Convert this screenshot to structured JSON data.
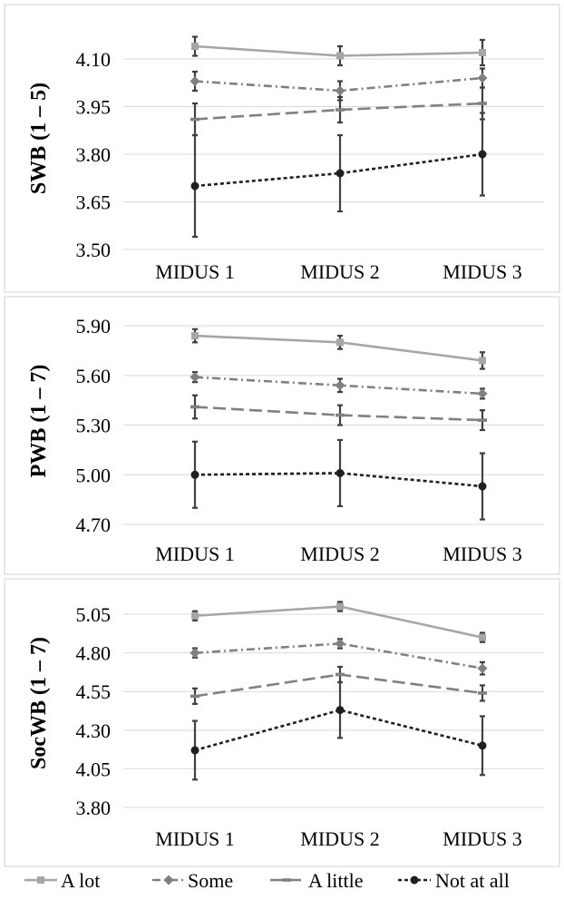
{
  "chart_data": [
    {
      "type": "line",
      "categories": [
        "MIDUS 1",
        "MIDUS 2",
        "MIDUS 3"
      ],
      "ylabel": "SWB (1 – 5)",
      "ylim": [
        3.5,
        4.2
      ],
      "yticks": [
        3.5,
        3.65,
        3.8,
        3.95,
        4.1
      ],
      "ytick_labels": [
        "3.50",
        "3.65",
        "3.80",
        "3.95",
        "4.10"
      ],
      "grid": true,
      "series": [
        {
          "name": "A lot",
          "values": [
            4.14,
            4.11,
            4.12
          ],
          "err": [
            0.03,
            0.03,
            0.04
          ]
        },
        {
          "name": "Some",
          "values": [
            4.03,
            4.0,
            4.04
          ],
          "err": [
            0.03,
            0.03,
            0.03
          ]
        },
        {
          "name": "A little",
          "values": [
            3.91,
            3.94,
            3.96
          ],
          "err": [
            0.05,
            0.04,
            0.05
          ]
        },
        {
          "name": "Not at all",
          "values": [
            3.7,
            3.74,
            3.8
          ],
          "err": [
            0.16,
            0.12,
            0.13
          ]
        }
      ]
    },
    {
      "type": "line",
      "categories": [
        "MIDUS 1",
        "MIDUS 2",
        "MIDUS 3"
      ],
      "ylabel": "PWB (1 – 7)",
      "ylim": [
        4.7,
        5.95
      ],
      "yticks": [
        4.7,
        5.0,
        5.3,
        5.6,
        5.9
      ],
      "ytick_labels": [
        "4.70",
        "5.00",
        "5.30",
        "5.60",
        "5.90"
      ],
      "grid": true,
      "series": [
        {
          "name": "A lot",
          "values": [
            5.84,
            5.8,
            5.69
          ],
          "err": [
            0.04,
            0.04,
            0.05
          ]
        },
        {
          "name": "Some",
          "values": [
            5.59,
            5.54,
            5.49
          ],
          "err": [
            0.03,
            0.04,
            0.03
          ]
        },
        {
          "name": "A little",
          "values": [
            5.41,
            5.36,
            5.33
          ],
          "err": [
            0.07,
            0.06,
            0.06
          ]
        },
        {
          "name": "Not at all",
          "values": [
            5.0,
            5.01,
            4.93
          ],
          "err": [
            0.2,
            0.2,
            0.2
          ]
        }
      ]
    },
    {
      "type": "line",
      "categories": [
        "MIDUS 1",
        "MIDUS 2",
        "MIDUS 3"
      ],
      "ylabel": "SocWB (1 – 7)",
      "ylim": [
        3.8,
        5.15
      ],
      "yticks": [
        3.8,
        4.05,
        4.3,
        4.55,
        4.8,
        5.05
      ],
      "ytick_labels": [
        "3.80",
        "4.05",
        "4.30",
        "4.55",
        "4.80",
        "5.05"
      ],
      "grid": true,
      "series": [
        {
          "name": "A lot",
          "values": [
            5.04,
            5.1,
            4.9
          ],
          "err": [
            0.03,
            0.03,
            0.03
          ]
        },
        {
          "name": "Some",
          "values": [
            4.8,
            4.86,
            4.7
          ],
          "err": [
            0.03,
            0.03,
            0.04
          ]
        },
        {
          "name": "A little",
          "values": [
            4.52,
            4.66,
            4.54
          ],
          "err": [
            0.05,
            0.05,
            0.05
          ]
        },
        {
          "name": "Not at all",
          "values": [
            4.17,
            4.43,
            4.2
          ],
          "err": [
            0.19,
            0.18,
            0.19
          ]
        }
      ]
    }
  ],
  "legend": {
    "placement": "bottom",
    "items": [
      {
        "label": "A lot",
        "color": "#a6a6a6",
        "marker": "square",
        "dash": "solid"
      },
      {
        "label": "Some",
        "color": "#808080",
        "marker": "diamond",
        "dash": "dash-dot"
      },
      {
        "label": "A little",
        "color": "#808080",
        "marker": "dash",
        "dash": "long-dash"
      },
      {
        "label": "Not at all",
        "color": "#1f1f1f",
        "marker": "circle",
        "dash": "dot"
      }
    ]
  },
  "errorbar_color": "#404040"
}
